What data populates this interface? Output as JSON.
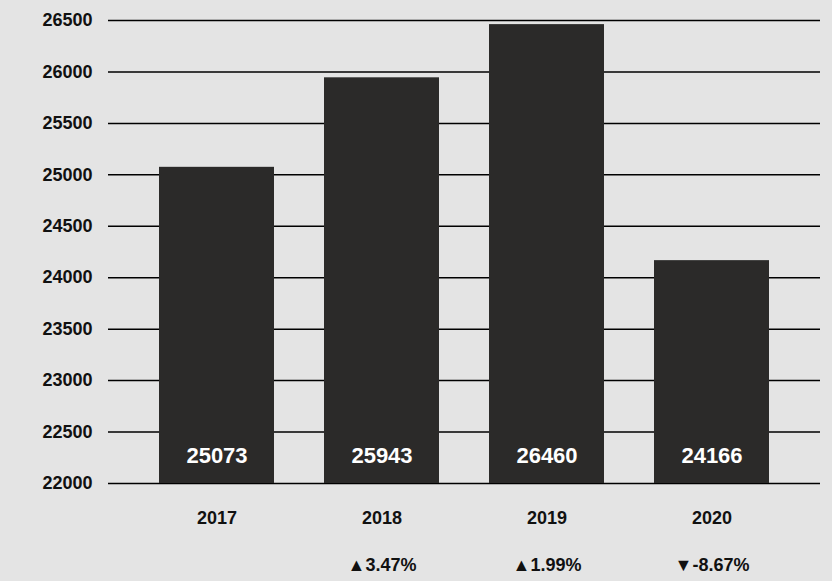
{
  "chart_data": {
    "type": "bar",
    "categories": [
      "2017",
      "2018",
      "2019",
      "2020"
    ],
    "values": [
      25073,
      25943,
      26460,
      24166
    ],
    "color": "#2b2a29",
    "ylim": [
      22000,
      26500
    ],
    "yticks": [
      22000,
      22500,
      23000,
      23500,
      24000,
      24500,
      25000,
      25500,
      26000,
      26500
    ],
    "grid": true,
    "data_labels": true,
    "annotations": [
      {
        "category": "2018",
        "text": "▲3.47%"
      },
      {
        "category": "2019",
        "text": "▲1.99%"
      },
      {
        "category": "2020",
        "text": "▼-8.67%"
      }
    ]
  }
}
